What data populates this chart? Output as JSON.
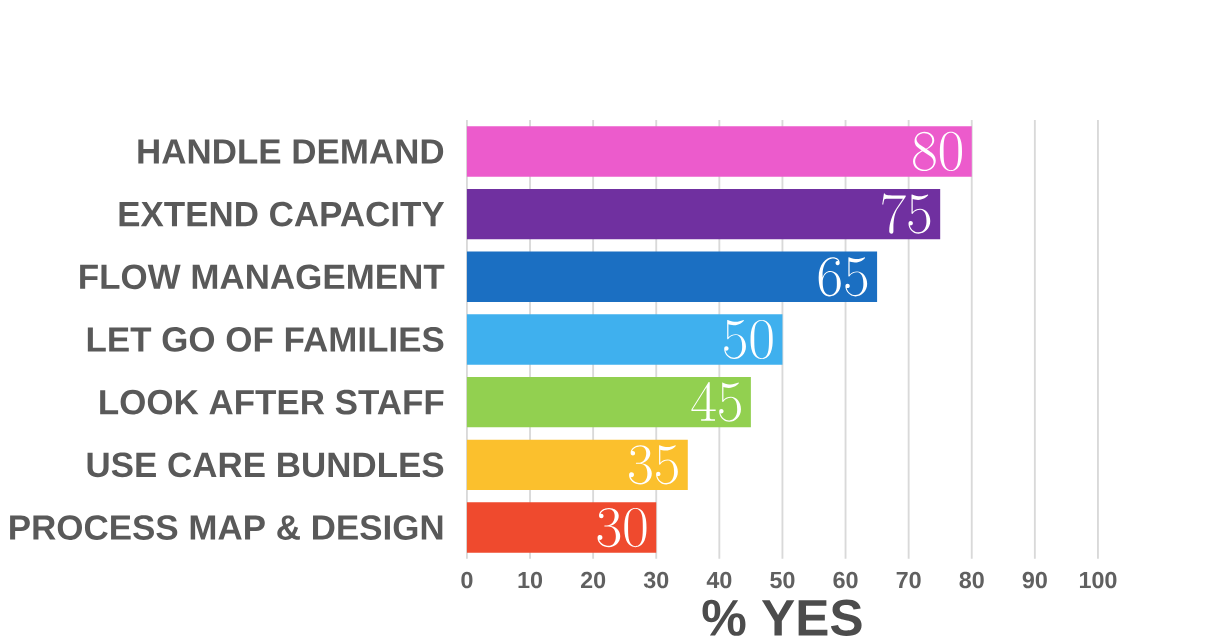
{
  "chart_data": {
    "type": "bar",
    "orientation": "horizontal",
    "xlabel": "% YES",
    "categories": [
      "HANDLE DEMAND",
      "EXTEND CAPACITY",
      "FLOW MANAGEMENT",
      "LET GO OF FAMILIES",
      "LOOK AFTER STAFF",
      "USE CARE BUNDLES",
      "PROCESS MAP & DESIGN"
    ],
    "values": [
      80,
      75,
      65,
      50,
      45,
      35,
      30
    ],
    "colors": [
      "#ec5bcc",
      "#7030a0",
      "#1b6fc2",
      "#3fb0ee",
      "#92d050",
      "#fbc02d",
      "#ef4a2e"
    ],
    "xlim": [
      0,
      100
    ],
    "xticks": [
      0,
      10,
      20,
      30,
      40,
      50,
      60,
      70,
      80,
      90,
      100
    ],
    "grid": "x",
    "data_labels": true
  }
}
